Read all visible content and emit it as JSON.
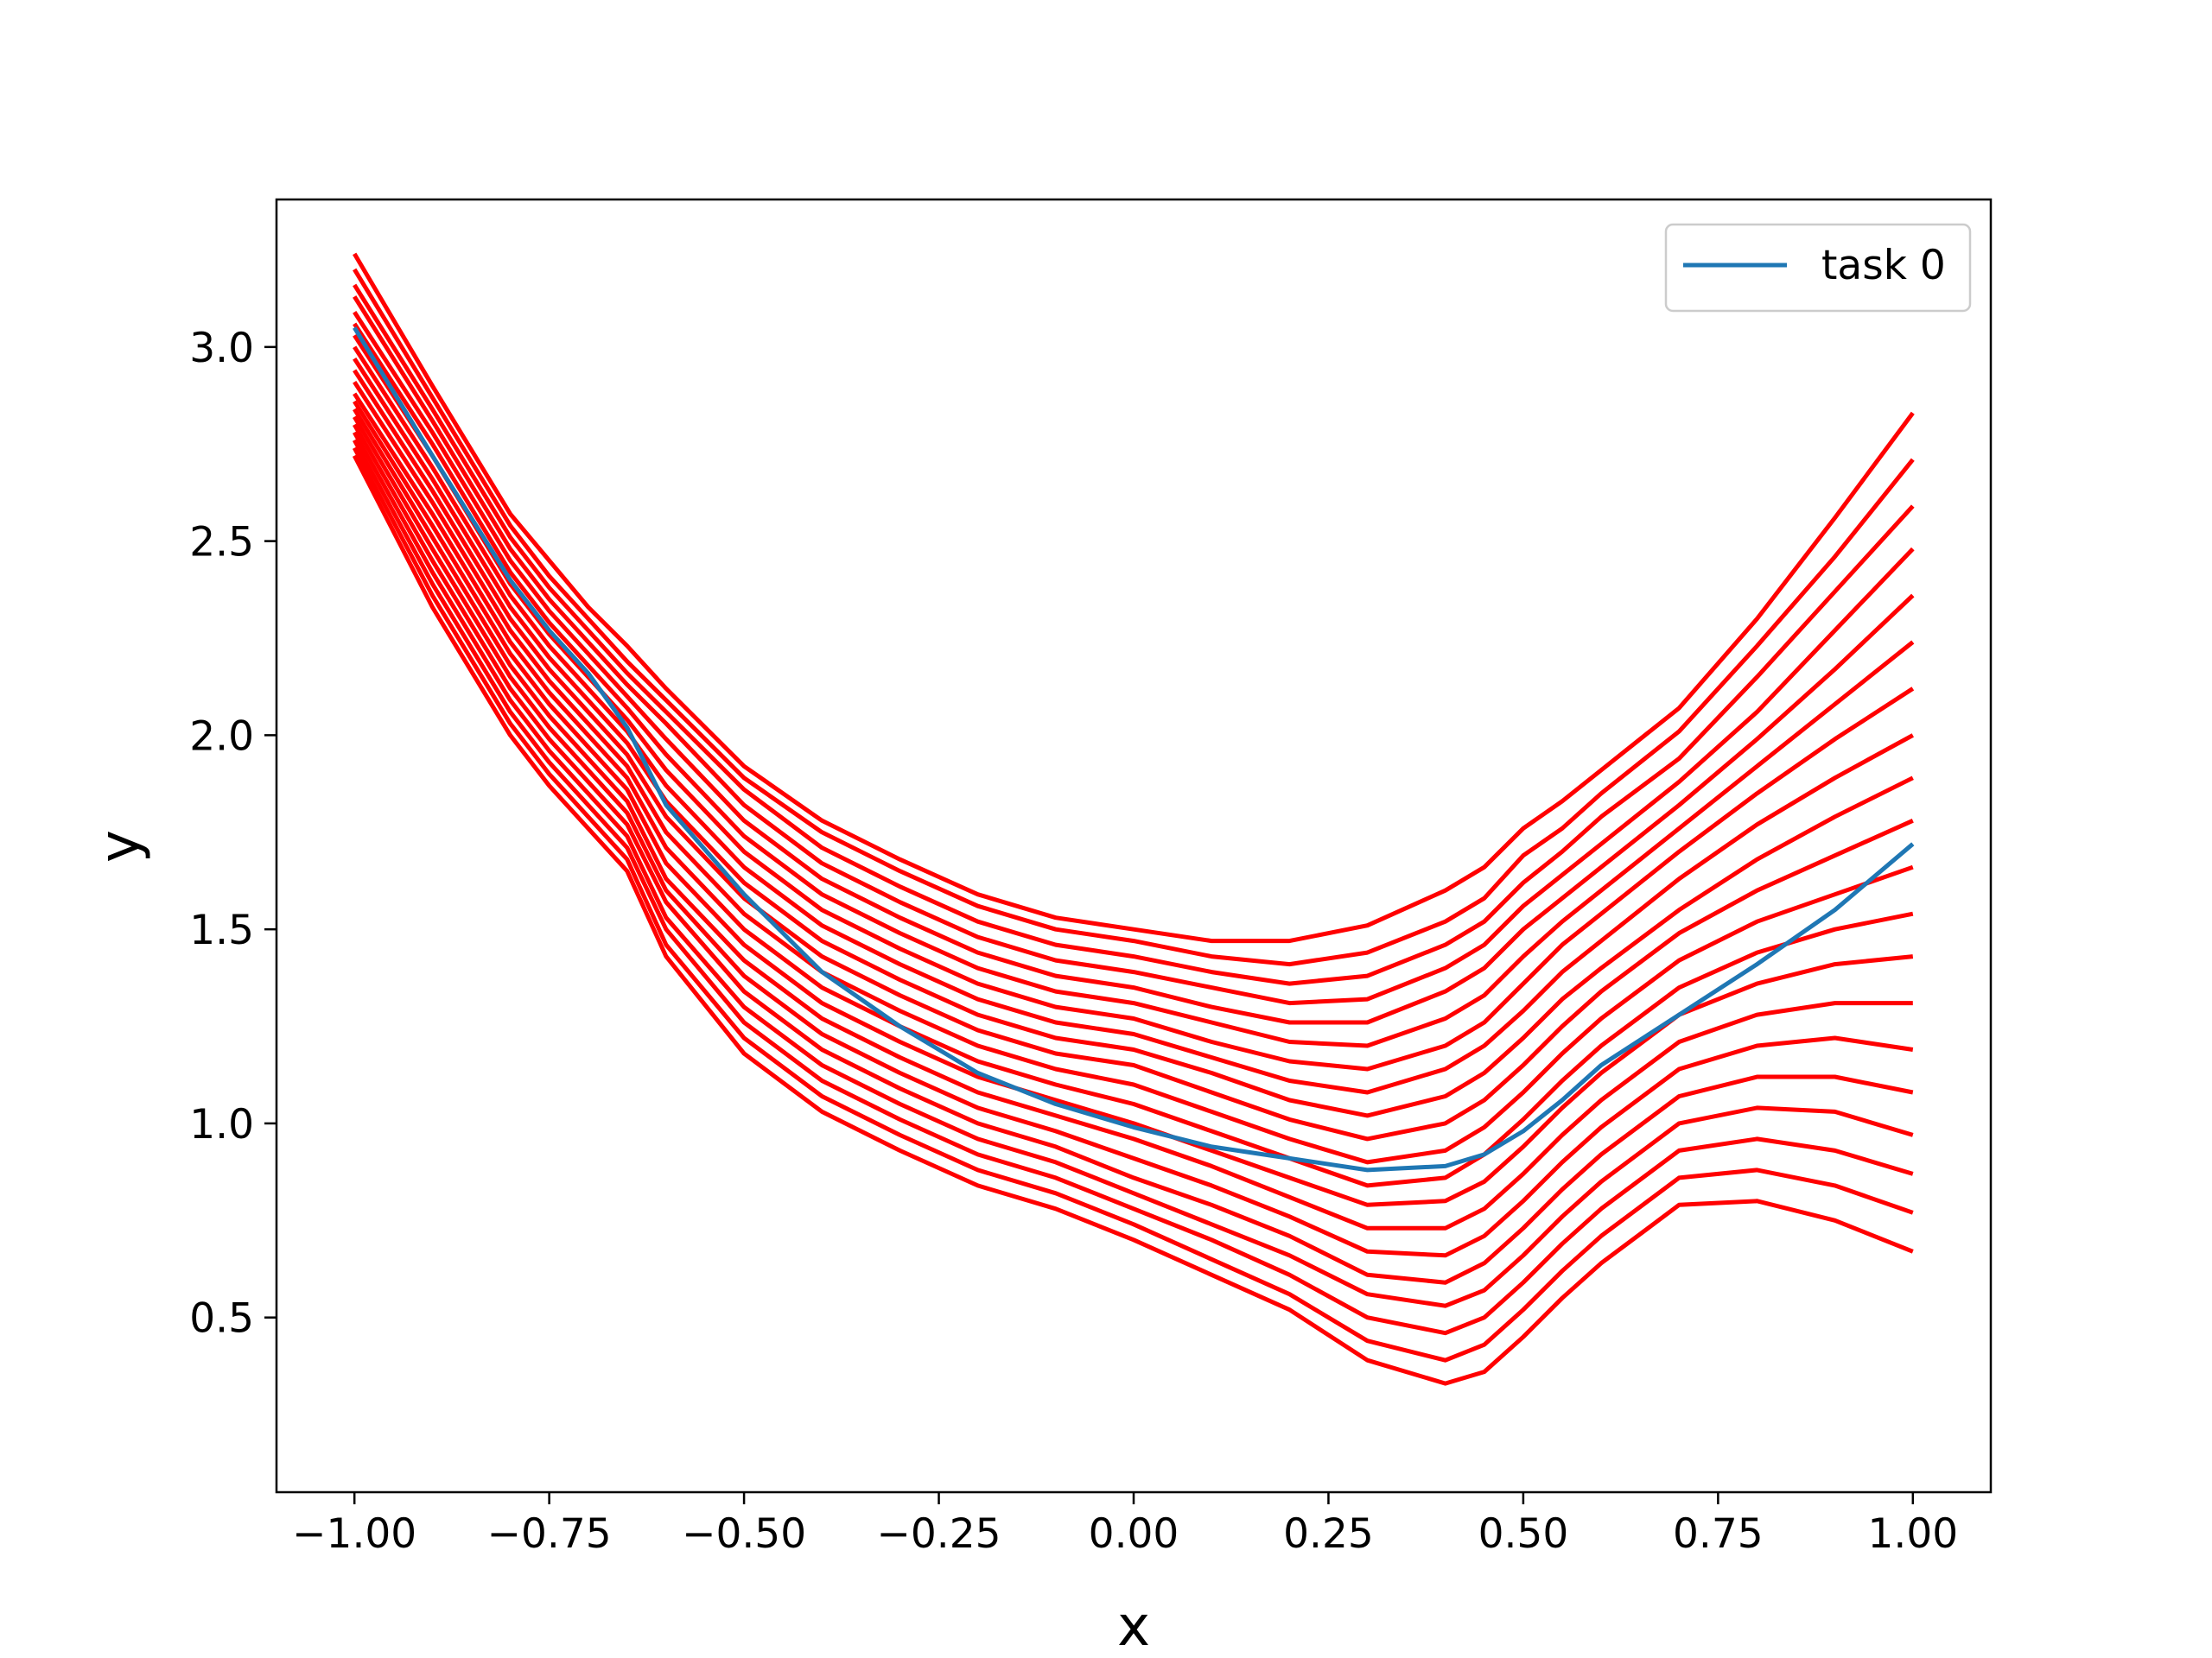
{
  "chart_data": {
    "type": "line",
    "title": "",
    "xlabel": "x",
    "ylabel": "y",
    "xlim": [
      -1.1,
      1.1
    ],
    "ylim": [
      0.05,
      3.38
    ],
    "xticks": [
      -1.0,
      -0.75,
      -0.5,
      -0.25,
      0.0,
      0.25,
      0.5,
      0.75,
      1.0
    ],
    "xtick_labels": [
      "−1.00",
      "−0.75",
      "−0.50",
      "−0.25",
      "0.00",
      "0.25",
      "0.50",
      "0.75",
      "1.00"
    ],
    "yticks": [
      0.5,
      1.0,
      1.5,
      2.0,
      2.5,
      3.0
    ],
    "ytick_labels": [
      "0.5",
      "1.0",
      "1.5",
      "2.0",
      "2.5",
      "3.0"
    ],
    "grid": false,
    "legend": {
      "position": "upper-right",
      "entries": [
        "task 0"
      ]
    },
    "colors": {
      "background_curves": "#ff0000",
      "task0": "#1f77b4"
    },
    "x": [
      -1.0,
      -0.9,
      -0.8,
      -0.75,
      -0.7,
      -0.65,
      -0.6,
      -0.5,
      -0.4,
      -0.3,
      -0.2,
      -0.1,
      0.0,
      0.1,
      0.2,
      0.3,
      0.4,
      0.45,
      0.5,
      0.55,
      0.6,
      0.7,
      0.8,
      0.9,
      1.0
    ],
    "series": [
      {
        "name": "task 0",
        "values": [
          3.05,
          2.72,
          2.4,
          2.27,
          2.16,
          2.02,
          1.82,
          1.59,
          1.39,
          1.25,
          1.13,
          1.05,
          0.99,
          0.94,
          0.91,
          0.88,
          0.89,
          0.92,
          0.98,
          1.06,
          1.15,
          1.28,
          1.41,
          1.55,
          1.72
        ]
      }
    ],
    "background_series": [
      {
        "values": [
          3.24,
          2.9,
          2.57,
          2.45,
          2.33,
          2.23,
          2.12,
          1.92,
          1.78,
          1.68,
          1.59,
          1.53,
          1.5,
          1.47,
          1.47,
          1.51,
          1.6,
          1.66,
          1.76,
          1.83,
          1.91,
          2.07,
          2.3,
          2.56,
          2.83
        ]
      },
      {
        "values": [
          3.2,
          2.87,
          2.54,
          2.41,
          2.3,
          2.19,
          2.09,
          1.89,
          1.75,
          1.65,
          1.56,
          1.5,
          1.47,
          1.43,
          1.41,
          1.44,
          1.52,
          1.58,
          1.69,
          1.76,
          1.85,
          2.01,
          2.23,
          2.46,
          2.71
        ]
      },
      {
        "values": [
          3.16,
          2.84,
          2.51,
          2.38,
          2.27,
          2.16,
          2.06,
          1.86,
          1.71,
          1.61,
          1.52,
          1.46,
          1.43,
          1.39,
          1.36,
          1.38,
          1.46,
          1.52,
          1.62,
          1.7,
          1.79,
          1.94,
          2.15,
          2.37,
          2.59
        ]
      },
      {
        "values": [
          3.13,
          2.81,
          2.48,
          2.35,
          2.24,
          2.13,
          2.03,
          1.82,
          1.67,
          1.57,
          1.48,
          1.42,
          1.39,
          1.35,
          1.31,
          1.32,
          1.4,
          1.46,
          1.56,
          1.64,
          1.72,
          1.88,
          2.06,
          2.27,
          2.48
        ]
      },
      {
        "values": [
          3.09,
          2.78,
          2.45,
          2.32,
          2.21,
          2.1,
          1.99,
          1.78,
          1.63,
          1.53,
          1.44,
          1.38,
          1.35,
          1.3,
          1.26,
          1.26,
          1.34,
          1.4,
          1.5,
          1.58,
          1.66,
          1.82,
          1.99,
          2.17,
          2.36
        ]
      },
      {
        "values": [
          3.06,
          2.75,
          2.42,
          2.29,
          2.18,
          2.07,
          1.95,
          1.74,
          1.59,
          1.49,
          1.4,
          1.34,
          1.31,
          1.26,
          1.21,
          1.2,
          1.27,
          1.33,
          1.43,
          1.52,
          1.6,
          1.76,
          1.92,
          2.08,
          2.24
        ]
      },
      {
        "values": [
          3.03,
          2.72,
          2.39,
          2.26,
          2.15,
          2.04,
          1.91,
          1.7,
          1.55,
          1.45,
          1.36,
          1.3,
          1.27,
          1.21,
          1.16,
          1.14,
          1.2,
          1.26,
          1.36,
          1.46,
          1.54,
          1.7,
          1.85,
          1.99,
          2.12
        ]
      },
      {
        "values": [
          3.0,
          2.69,
          2.36,
          2.23,
          2.12,
          2.01,
          1.87,
          1.66,
          1.51,
          1.41,
          1.32,
          1.26,
          1.23,
          1.17,
          1.11,
          1.08,
          1.14,
          1.2,
          1.29,
          1.39,
          1.47,
          1.63,
          1.77,
          1.89,
          2.0
        ]
      },
      {
        "values": [
          2.97,
          2.66,
          2.33,
          2.2,
          2.09,
          1.98,
          1.83,
          1.62,
          1.47,
          1.37,
          1.28,
          1.22,
          1.19,
          1.13,
          1.06,
          1.02,
          1.07,
          1.13,
          1.22,
          1.32,
          1.4,
          1.55,
          1.68,
          1.79,
          1.89
        ]
      },
      {
        "values": [
          2.94,
          2.63,
          2.3,
          2.17,
          2.06,
          1.95,
          1.79,
          1.58,
          1.43,
          1.33,
          1.24,
          1.18,
          1.15,
          1.08,
          1.01,
          0.96,
          1.0,
          1.06,
          1.15,
          1.25,
          1.34,
          1.49,
          1.6,
          1.69,
          1.78
        ]
      },
      {
        "values": [
          2.91,
          2.6,
          2.27,
          2.14,
          2.03,
          1.92,
          1.75,
          1.54,
          1.39,
          1.29,
          1.2,
          1.14,
          1.1,
          1.03,
          0.96,
          0.9,
          0.93,
          0.99,
          1.08,
          1.18,
          1.27,
          1.42,
          1.52,
          1.59,
          1.66
        ]
      },
      {
        "values": [
          2.88,
          2.57,
          2.24,
          2.11,
          2.0,
          1.89,
          1.71,
          1.5,
          1.35,
          1.25,
          1.16,
          1.1,
          1.05,
          0.98,
          0.91,
          0.84,
          0.86,
          0.92,
          1.01,
          1.11,
          1.2,
          1.35,
          1.44,
          1.5,
          1.54
        ]
      },
      {
        "values": [
          2.86,
          2.54,
          2.21,
          2.08,
          1.97,
          1.86,
          1.67,
          1.46,
          1.31,
          1.21,
          1.12,
          1.06,
          1.0,
          0.93,
          0.86,
          0.79,
          0.8,
          0.85,
          0.94,
          1.04,
          1.13,
          1.28,
          1.36,
          1.41,
          1.43
        ]
      },
      {
        "values": [
          2.84,
          2.51,
          2.18,
          2.05,
          1.94,
          1.83,
          1.63,
          1.42,
          1.27,
          1.17,
          1.08,
          1.02,
          0.96,
          0.89,
          0.81,
          0.73,
          0.73,
          0.78,
          0.87,
          0.97,
          1.06,
          1.21,
          1.28,
          1.31,
          1.31
        ]
      },
      {
        "values": [
          2.82,
          2.48,
          2.15,
          2.02,
          1.91,
          1.8,
          1.6,
          1.38,
          1.23,
          1.13,
          1.04,
          0.98,
          0.91,
          0.84,
          0.76,
          0.67,
          0.66,
          0.71,
          0.8,
          0.9,
          0.99,
          1.14,
          1.2,
          1.22,
          1.19
        ]
      },
      {
        "values": [
          2.8,
          2.45,
          2.12,
          1.99,
          1.88,
          1.77,
          1.57,
          1.34,
          1.19,
          1.09,
          1.0,
          0.94,
          0.86,
          0.79,
          0.71,
          0.61,
          0.59,
          0.64,
          0.73,
          0.83,
          0.92,
          1.07,
          1.12,
          1.12,
          1.08
        ]
      },
      {
        "values": [
          2.78,
          2.42,
          2.09,
          1.96,
          1.85,
          1.74,
          1.53,
          1.3,
          1.15,
          1.05,
          0.96,
          0.9,
          0.82,
          0.74,
          0.66,
          0.56,
          0.53,
          0.57,
          0.66,
          0.76,
          0.85,
          1.0,
          1.04,
          1.03,
          0.97
        ]
      },
      {
        "values": [
          2.76,
          2.39,
          2.06,
          1.93,
          1.82,
          1.71,
          1.5,
          1.26,
          1.11,
          1.01,
          0.92,
          0.86,
          0.78,
          0.7,
          0.61,
          0.5,
          0.46,
          0.5,
          0.59,
          0.69,
          0.78,
          0.93,
          0.96,
          0.93,
          0.87
        ]
      },
      {
        "values": [
          2.74,
          2.36,
          2.03,
          1.9,
          1.79,
          1.68,
          1.46,
          1.22,
          1.07,
          0.97,
          0.88,
          0.82,
          0.74,
          0.65,
          0.56,
          0.44,
          0.39,
          0.43,
          0.52,
          0.62,
          0.71,
          0.86,
          0.88,
          0.84,
          0.77
        ]
      },
      {
        "values": [
          2.72,
          2.33,
          2.0,
          1.87,
          1.76,
          1.65,
          1.43,
          1.18,
          1.03,
          0.93,
          0.84,
          0.78,
          0.7,
          0.61,
          0.52,
          0.39,
          0.33,
          0.36,
          0.45,
          0.55,
          0.64,
          0.79,
          0.8,
          0.75,
          0.67
        ]
      }
    ]
  }
}
